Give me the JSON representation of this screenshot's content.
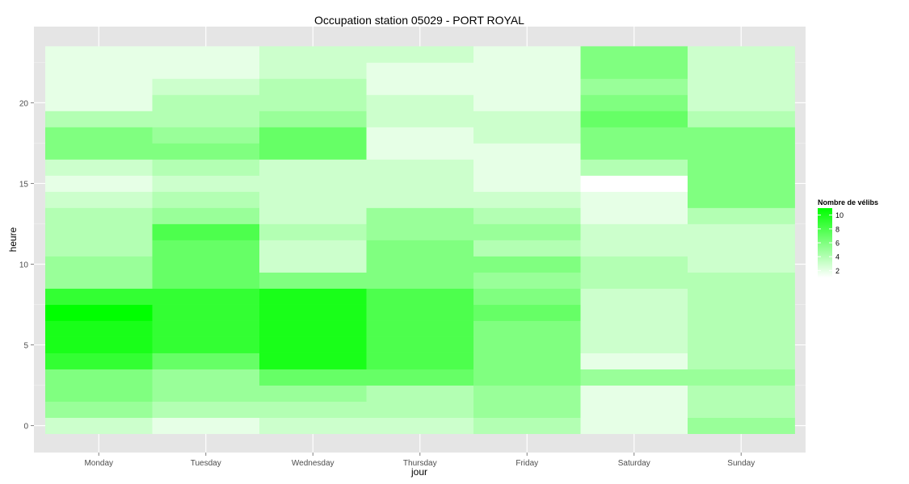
{
  "chart_data": {
    "type": "heatmap",
    "title": "Occupation station 05029 - PORT ROYAL",
    "xlabel": "jour",
    "ylabel": "heure",
    "categories": [
      "Monday",
      "Tuesday",
      "Wednesday",
      "Thursday",
      "Friday",
      "Saturday",
      "Sunday"
    ],
    "hours": [
      0,
      1,
      2,
      3,
      4,
      5,
      6,
      7,
      8,
      9,
      10,
      11,
      12,
      13,
      14,
      15,
      16,
      17,
      18,
      19,
      20,
      21,
      22,
      23
    ],
    "y_ticks": [
      0,
      5,
      10,
      15,
      20
    ],
    "ylim": [
      -0.5,
      23.5
    ],
    "values": [
      [
        3,
        5,
        6,
        6,
        9,
        10,
        10,
        11,
        9,
        5,
        5,
        4,
        4,
        4,
        3,
        2,
        3,
        6,
        6,
        4,
        2,
        2,
        2,
        2
      ],
      [
        2,
        4,
        5,
        5,
        7,
        9,
        9,
        9,
        9,
        7,
        7,
        7,
        8,
        5,
        4,
        3,
        4,
        6,
        5,
        4,
        4,
        3,
        2,
        2
      ],
      [
        3,
        4,
        5,
        7,
        10,
        10,
        10,
        10,
        10,
        6,
        3,
        3,
        4,
        3,
        3,
        3,
        3,
        7,
        7,
        5,
        4,
        4,
        3,
        3
      ],
      [
        3,
        4,
        4,
        7,
        8,
        8,
        8,
        8,
        8,
        6,
        6,
        6,
        5,
        5,
        3,
        3,
        3,
        2,
        2,
        3,
        3,
        2,
        2,
        3
      ],
      [
        4,
        5,
        5,
        6,
        6,
        6,
        6,
        7,
        6,
        5,
        6,
        4,
        5,
        4,
        3,
        2,
        2,
        2,
        3,
        3,
        2,
        2,
        2,
        2
      ],
      [
        2,
        2,
        2,
        5,
        2,
        3,
        3,
        3,
        3,
        4,
        4,
        3,
        3,
        2,
        2,
        1,
        4,
        6,
        6,
        7,
        6,
        5,
        6,
        6
      ],
      [
        5,
        4,
        4,
        5,
        4,
        4,
        4,
        4,
        4,
        4,
        3,
        3,
        3,
        4,
        6,
        6,
        6,
        6,
        6,
        4,
        3,
        3,
        3,
        3
      ]
    ],
    "legend": {
      "title": "Nombre de vélibs",
      "ticks": [
        2,
        4,
        6,
        8,
        10
      ],
      "range": [
        1,
        11
      ],
      "placement": "right",
      "low_color": "#ffffff",
      "high_color": "#00ff00"
    },
    "grid": true,
    "panel_color": "#e5e5e5"
  }
}
